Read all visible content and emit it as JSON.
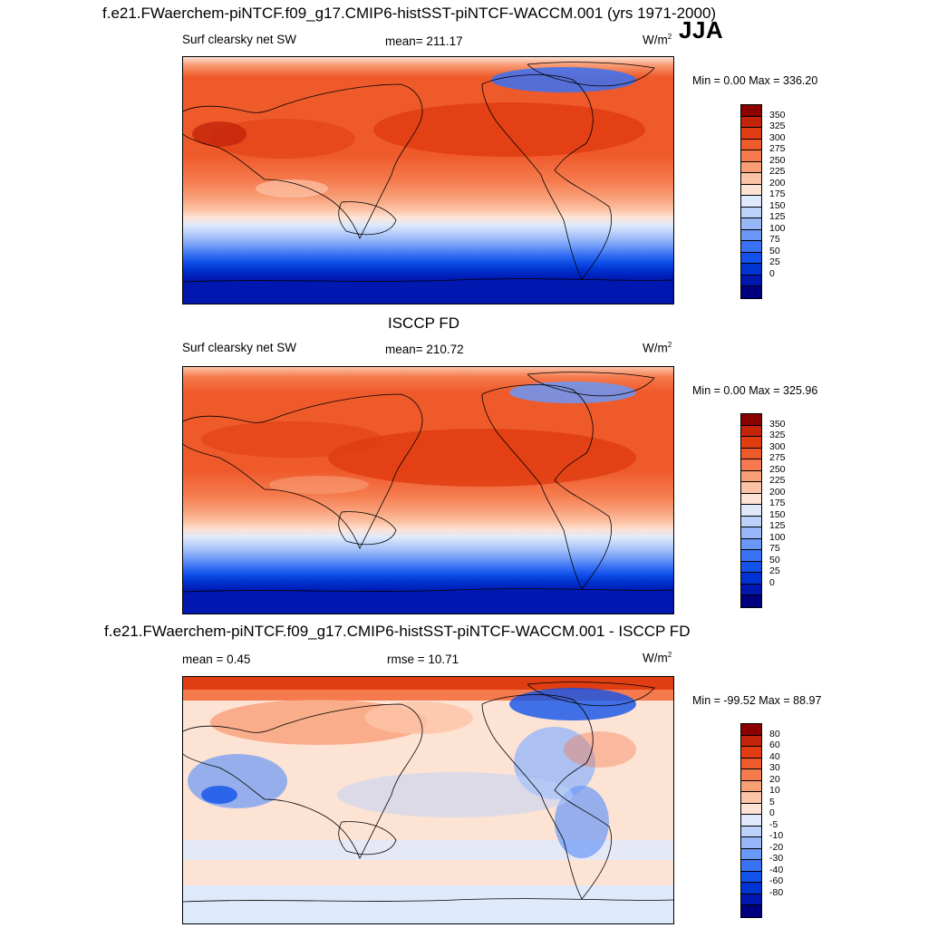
{
  "season": "JJA",
  "units_base": "W/m",
  "units_exp": "2",
  "units_plain": "W/m",
  "colors": {
    "sw": [
      "#00007f",
      "#0018b0",
      "#0034d2",
      "#1252ea",
      "#3a72f4",
      "#6a98f7",
      "#97b7f8",
      "#bdd2fa",
      "#dfe9fc",
      "#fde3d4",
      "#fcc3a6",
      "#f99f78",
      "#f57b4e",
      "#ef5a2b",
      "#e03d12",
      "#c3240a",
      "#8b0000"
    ],
    "diff": [
      "#00007f",
      "#0018b0",
      "#0034d2",
      "#1252ea",
      "#3a72f4",
      "#6a98f7",
      "#97b7f8",
      "#bdd2fa",
      "#dfe9fc",
      "#fde3d4",
      "#fcc3a6",
      "#f99f78",
      "#f57b4e",
      "#ef5a2b",
      "#e03d12",
      "#c3240a",
      "#8b0000"
    ]
  },
  "panels": [
    {
      "title": "f.e21.FWaerchem-piNTCF.f09_g17.CMIP6-histSST-piNTCF-WACCM.001 (yrs 1971-2000)",
      "variable": "Surf clearsky net SW",
      "stat": "mean= 211.17",
      "minmax": "Min =   0.00 Max = 336.20",
      "levels": [
        "350",
        "325",
        "300",
        "275",
        "250",
        "225",
        "200",
        "175",
        "150",
        "125",
        "100",
        "75",
        "50",
        "25",
        "0"
      ]
    },
    {
      "title": "ISCCP FD",
      "variable": "Surf clearsky net SW",
      "stat": "mean= 210.72",
      "minmax": "Min =   0.00 Max = 325.96",
      "levels": [
        "350",
        "325",
        "300",
        "275",
        "250",
        "225",
        "200",
        "175",
        "150",
        "125",
        "100",
        "75",
        "50",
        "25",
        "0"
      ]
    },
    {
      "title": "f.e21.FWaerchem-piNTCF.f09_g17.CMIP6-histSST-piNTCF-WACCM.001 - ISCCP FD",
      "variable": "mean =   0.45",
      "stat": "rmse =  10.71",
      "minmax": "Min = -99.52 Max =  88.97",
      "levels": [
        "80",
        "60",
        "40",
        "30",
        "20",
        "10",
        "5",
        "0",
        "-5",
        "-10",
        "-20",
        "-30",
        "-40",
        "-60",
        "-80"
      ]
    }
  ]
}
